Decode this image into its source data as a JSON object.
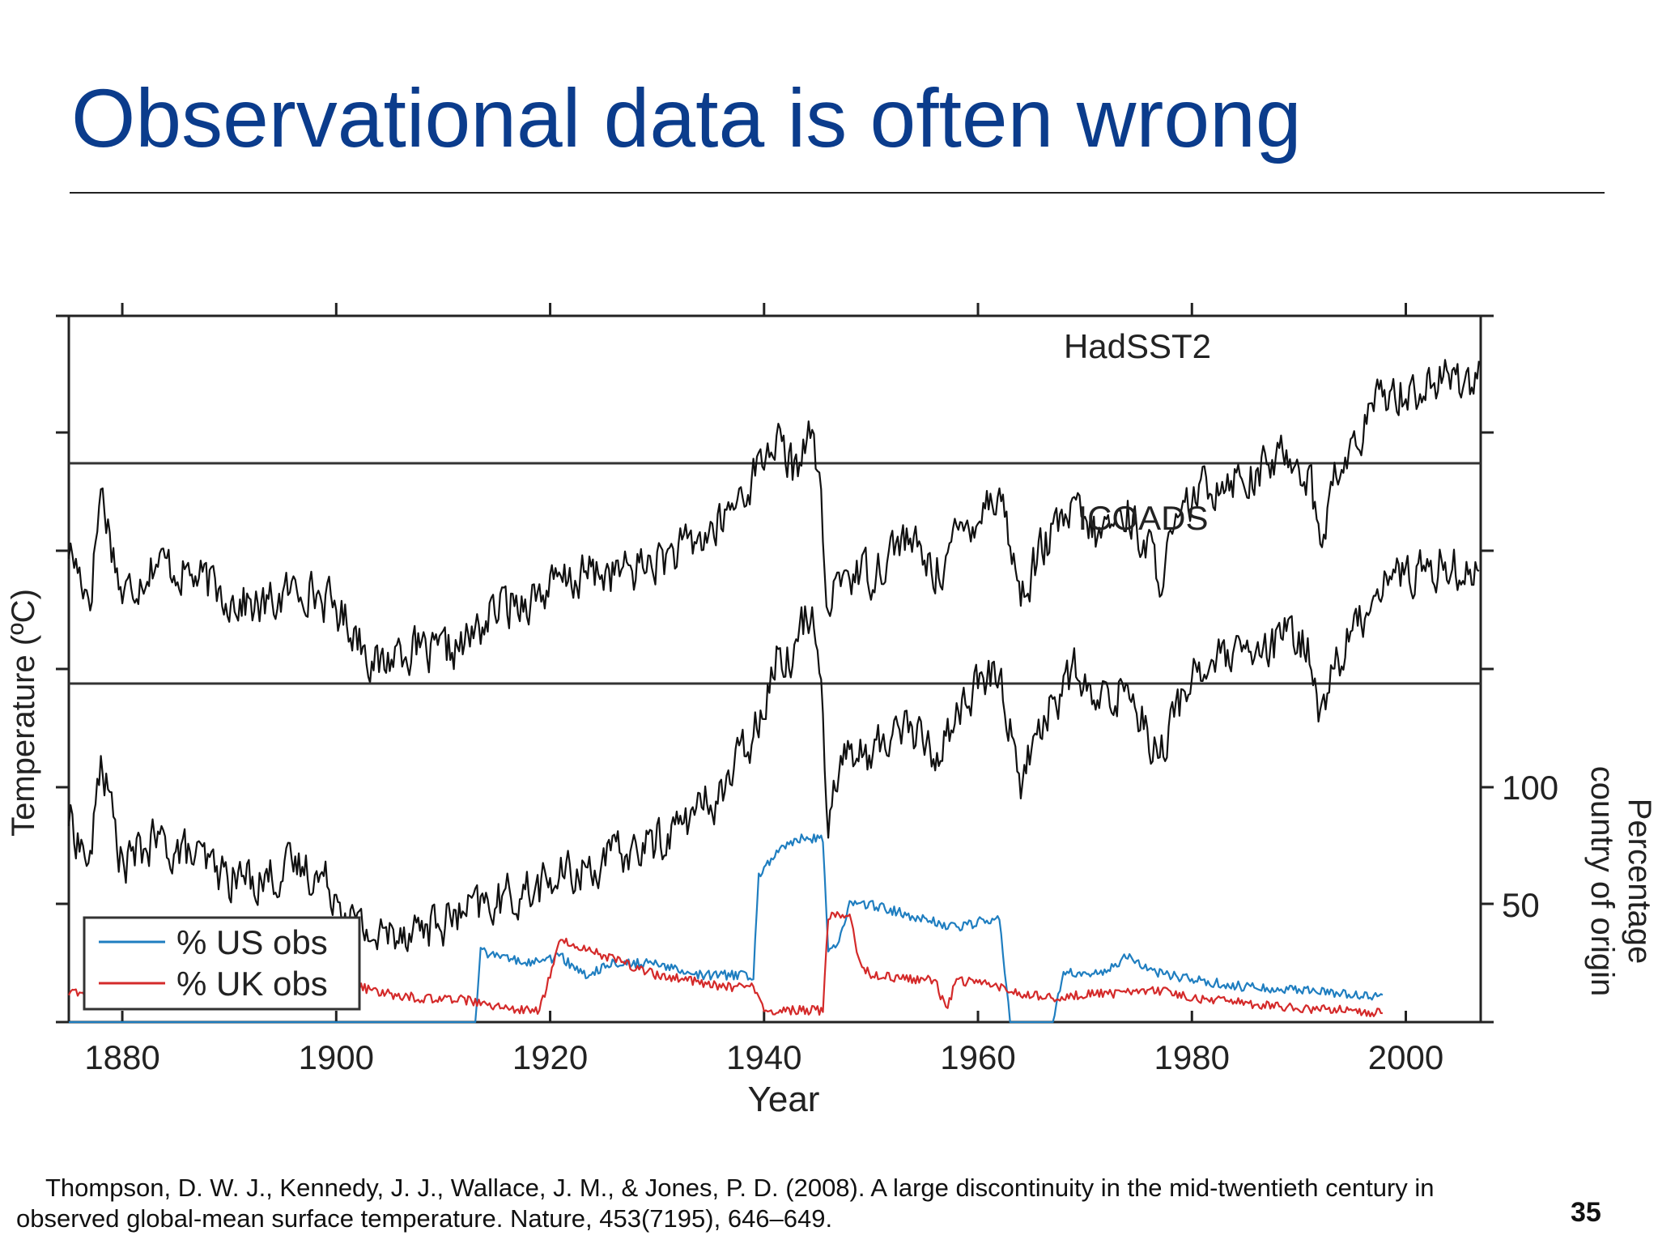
{
  "slide": {
    "title": "Observational data is often wrong",
    "citation_line1": "Thompson, D. W. J., Kennedy, J. J., Wallace, J. M., & Jones, P. D. (2008). A large discontinuity in the mid-twentieth century in",
    "citation_line2": "observed global-mean surface temperature. Nature, 453(7195), 646–649.",
    "page_number": "35"
  },
  "chart_data": {
    "type": "line",
    "title": "",
    "xlabel": "Year",
    "ylabel": "Temperature (ºC)",
    "y2label_line1": "Percentage",
    "y2label_line2": "country of origin",
    "xlim": [
      1875,
      2007
    ],
    "x_ticks": [
      1880,
      1900,
      1920,
      1940,
      1960,
      1980,
      2000
    ],
    "x_tick_labels": [
      "1880",
      "1900",
      "1920",
      "1940",
      "1960",
      "1980",
      "2000"
    ],
    "y2_ticks": [
      50,
      100
    ],
    "y2_tick_labels": [
      "50",
      "100"
    ],
    "y2lim": [
      0,
      100
    ],
    "grid": false,
    "legend_position": "bottom-left",
    "temperature_panels": [
      {
        "label": "HadSST2",
        "color": "#111111",
        "x": [
          1875,
          1877,
          1878,
          1880,
          1883,
          1886,
          1890,
          1893,
          1897,
          1900,
          1902,
          1904,
          1906,
          1909,
          1912,
          1915,
          1918,
          1921,
          1924,
          1927,
          1930,
          1933,
          1936,
          1939,
          1941,
          1943,
          1944,
          1945,
          1946,
          1947,
          1950,
          1953,
          1956,
          1959,
          1962,
          1964,
          1966,
          1969,
          1971,
          1974,
          1977,
          1980,
          1983,
          1986,
          1989,
          1991,
          1992,
          1993,
          1995,
          1998,
          2001,
          2004,
          2007
        ],
        "y": [
          -0.35,
          -0.55,
          -0.1,
          -0.55,
          -0.4,
          -0.45,
          -0.55,
          -0.6,
          -0.5,
          -0.6,
          -0.7,
          -0.85,
          -0.75,
          -0.8,
          -0.75,
          -0.6,
          -0.55,
          -0.5,
          -0.45,
          -0.45,
          -0.4,
          -0.35,
          -0.25,
          -0.05,
          0.1,
          -0.05,
          0.15,
          0.0,
          -0.65,
          -0.45,
          -0.45,
          -0.3,
          -0.45,
          -0.25,
          -0.1,
          -0.55,
          -0.35,
          -0.2,
          -0.3,
          -0.2,
          -0.45,
          -0.15,
          -0.05,
          -0.05,
          0.05,
          -0.05,
          -0.35,
          -0.1,
          0.05,
          0.3,
          0.3,
          0.35,
          0.35
        ]
      },
      {
        "label": "ICOADS",
        "color": "#111111",
        "x": [
          1875,
          1877,
          1878,
          1880,
          1883,
          1886,
          1890,
          1893,
          1897,
          1900,
          1902,
          1904,
          1906,
          1909,
          1912,
          1915,
          1918,
          1921,
          1924,
          1927,
          1930,
          1933,
          1936,
          1939,
          1941,
          1943,
          1944,
          1945,
          1946,
          1947,
          1950,
          1953,
          1956,
          1959,
          1962,
          1964,
          1966,
          1969,
          1971,
          1974,
          1977,
          1980,
          1983,
          1986,
          1989,
          1991,
          1992,
          1993,
          1995,
          1998,
          2001,
          2004,
          2007
        ],
        "y": [
          -0.55,
          -0.75,
          -0.3,
          -0.75,
          -0.65,
          -0.7,
          -0.8,
          -0.8,
          -0.75,
          -0.85,
          -1.0,
          -1.05,
          -1.0,
          -1.0,
          -0.95,
          -0.9,
          -0.85,
          -0.8,
          -0.75,
          -0.7,
          -0.65,
          -0.55,
          -0.45,
          -0.2,
          0.1,
          0.15,
          0.3,
          0.25,
          -0.55,
          -0.3,
          -0.3,
          -0.15,
          -0.3,
          -0.05,
          0.05,
          -0.4,
          -0.15,
          0.05,
          -0.1,
          0.0,
          -0.3,
          0.05,
          0.1,
          0.1,
          0.2,
          0.15,
          -0.15,
          0.05,
          0.2,
          0.45,
          0.45,
          0.5,
          0.45
        ]
      }
    ],
    "series": [
      {
        "name": "% US obs",
        "color": "#1f7ec0",
        "x": [
          1875,
          1911,
          1913,
          1913.5,
          1915,
          1918,
          1921,
          1923,
          1926,
          1930,
          1933,
          1936,
          1939,
          1939.5,
          1941,
          1943,
          1945.5,
          1946,
          1947,
          1948,
          1950,
          1954,
          1958,
          1962,
          1963,
          1964,
          1967,
          1968,
          1970,
          1972,
          1974,
          1976,
          1978,
          1980,
          1985,
          1990,
          1995,
          1998
        ],
        "y": [
          0,
          0,
          0,
          30,
          28,
          25,
          28,
          20,
          25,
          25,
          20,
          20,
          20,
          62,
          72,
          78,
          78,
          30,
          35,
          50,
          50,
          45,
          40,
          45,
          0,
          0,
          0,
          22,
          20,
          22,
          28,
          22,
          20,
          18,
          15,
          14,
          12,
          10
        ]
      },
      {
        "name": "% UK obs",
        "color": "#d42a2a",
        "x": [
          1875,
          1900,
          1902,
          1905,
          1908,
          1911,
          1914,
          1917,
          1919,
          1921,
          1924,
          1927,
          1930,
          1933,
          1936,
          1939,
          1940,
          1943,
          1945.5,
          1946,
          1948,
          1949,
          1950,
          1954,
          1956,
          1957,
          1958,
          1962,
          1964,
          1967,
          1970,
          1973,
          1976,
          1978,
          1980,
          1985,
          1990,
          1995,
          1998
        ],
        "y": [
          12,
          12,
          15,
          12,
          10,
          10,
          8,
          5,
          5,
          35,
          30,
          25,
          20,
          18,
          15,
          15,
          5,
          5,
          5,
          45,
          45,
          25,
          20,
          18,
          18,
          5,
          18,
          15,
          12,
          10,
          12,
          12,
          14,
          13,
          10,
          8,
          6,
          5,
          4
        ]
      }
    ]
  }
}
